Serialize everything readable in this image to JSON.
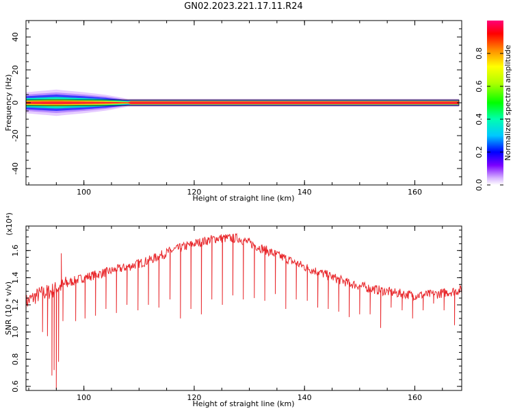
{
  "chart_data": [
    {
      "type": "heatmap",
      "title": "GN02.2023.221.17.11.R24",
      "xlabel": "Height of straight line (km)",
      "ylabel": "Frequency (Hz)",
      "xlim": [
        89.5,
        168.5
      ],
      "ylim": [
        -50,
        50
      ],
      "xticks": [
        "100",
        "120",
        "140",
        "160"
      ],
      "yticks": [
        "-40",
        "-20",
        "0",
        "20",
        "40"
      ],
      "colorbar_label": "Normalized spectral amplitude",
      "colorbar_ticks": [
        "0.0",
        "0.2",
        "0.4",
        "0.6",
        "0.8"
      ],
      "band_center_hz": 0,
      "band_width_hz": [
        {
          "x": 89.5,
          "halfwidth": 4
        },
        {
          "x": 95,
          "halfwidth": 5
        },
        {
          "x": 100,
          "halfwidth": 4
        },
        {
          "x": 104,
          "halfwidth": 3
        },
        {
          "x": 108,
          "halfwidth": 1.5
        },
        {
          "x": 168,
          "halfwidth": 1.5
        }
      ]
    },
    {
      "type": "line",
      "xlabel": "Height of straight line (km)",
      "ylabel": "SNR (10 * v/v)",
      "y_multiplier": "(x10⁴)",
      "xlim": [
        89.5,
        168.5
      ],
      "ylim": [
        0.57,
        1.78
      ],
      "xticks": [
        "100",
        "120",
        "140",
        "160"
      ],
      "yticks": [
        "0.6",
        "0.8",
        "1.0",
        "1.2",
        "1.4",
        "1.6"
      ],
      "color": "#e8262a",
      "trend": [
        {
          "x": 89.5,
          "y": 1.22
        },
        {
          "x": 92,
          "y": 1.28
        },
        {
          "x": 94,
          "y": 1.3
        },
        {
          "x": 97,
          "y": 1.36
        },
        {
          "x": 100,
          "y": 1.4
        },
        {
          "x": 104,
          "y": 1.44
        },
        {
          "x": 108,
          "y": 1.48
        },
        {
          "x": 112,
          "y": 1.53
        },
        {
          "x": 116,
          "y": 1.6
        },
        {
          "x": 120,
          "y": 1.65
        },
        {
          "x": 124,
          "y": 1.69
        },
        {
          "x": 128,
          "y": 1.69
        },
        {
          "x": 132,
          "y": 1.62
        },
        {
          "x": 136,
          "y": 1.55
        },
        {
          "x": 140,
          "y": 1.48
        },
        {
          "x": 144,
          "y": 1.42
        },
        {
          "x": 148,
          "y": 1.36
        },
        {
          "x": 152,
          "y": 1.32
        },
        {
          "x": 156,
          "y": 1.29
        },
        {
          "x": 160,
          "y": 1.27
        },
        {
          "x": 164,
          "y": 1.28
        },
        {
          "x": 168.5,
          "y": 1.31
        }
      ],
      "dips": [
        {
          "x": 92.5,
          "y": 1.0
        },
        {
          "x": 93.4,
          "y": 0.97
        },
        {
          "x": 94.2,
          "y": 0.68
        },
        {
          "x": 94.6,
          "y": 0.72
        },
        {
          "x": 95.0,
          "y": 0.58
        },
        {
          "x": 95.4,
          "y": 0.78
        },
        {
          "x": 96.2,
          "y": 1.08
        },
        {
          "x": 98.5,
          "y": 1.08
        },
        {
          "x": 100.2,
          "y": 1.1
        },
        {
          "x": 102.1,
          "y": 1.12
        },
        {
          "x": 104.0,
          "y": 1.17
        },
        {
          "x": 105.9,
          "y": 1.14
        },
        {
          "x": 107.8,
          "y": 1.2
        },
        {
          "x": 109.8,
          "y": 1.16
        },
        {
          "x": 111.7,
          "y": 1.2
        },
        {
          "x": 113.6,
          "y": 1.18
        },
        {
          "x": 115.6,
          "y": 1.24
        },
        {
          "x": 117.5,
          "y": 1.1
        },
        {
          "x": 119.4,
          "y": 1.17
        },
        {
          "x": 121.3,
          "y": 1.13
        },
        {
          "x": 123.2,
          "y": 1.24
        },
        {
          "x": 125.1,
          "y": 1.2
        },
        {
          "x": 127.0,
          "y": 1.27
        },
        {
          "x": 128.9,
          "y": 1.24
        },
        {
          "x": 130.9,
          "y": 1.25
        },
        {
          "x": 132.8,
          "y": 1.23
        },
        {
          "x": 134.7,
          "y": 1.28
        },
        {
          "x": 136.6,
          "y": 1.17
        },
        {
          "x": 138.5,
          "y": 1.24
        },
        {
          "x": 140.5,
          "y": 1.23
        },
        {
          "x": 142.4,
          "y": 1.18
        },
        {
          "x": 144.3,
          "y": 1.17
        },
        {
          "x": 146.2,
          "y": 1.15
        },
        {
          "x": 148.1,
          "y": 1.11
        },
        {
          "x": 150.0,
          "y": 1.13
        },
        {
          "x": 151.9,
          "y": 1.13
        },
        {
          "x": 153.8,
          "y": 1.03
        },
        {
          "x": 155.7,
          "y": 1.18
        },
        {
          "x": 157.7,
          "y": 1.16
        },
        {
          "x": 159.6,
          "y": 1.1
        },
        {
          "x": 161.5,
          "y": 1.16
        },
        {
          "x": 163.4,
          "y": 1.21
        },
        {
          "x": 165.3,
          "y": 1.16
        },
        {
          "x": 167.2,
          "y": 1.05
        }
      ],
      "spikes": [
        {
          "x": 95.9,
          "y": 1.58
        }
      ]
    }
  ]
}
